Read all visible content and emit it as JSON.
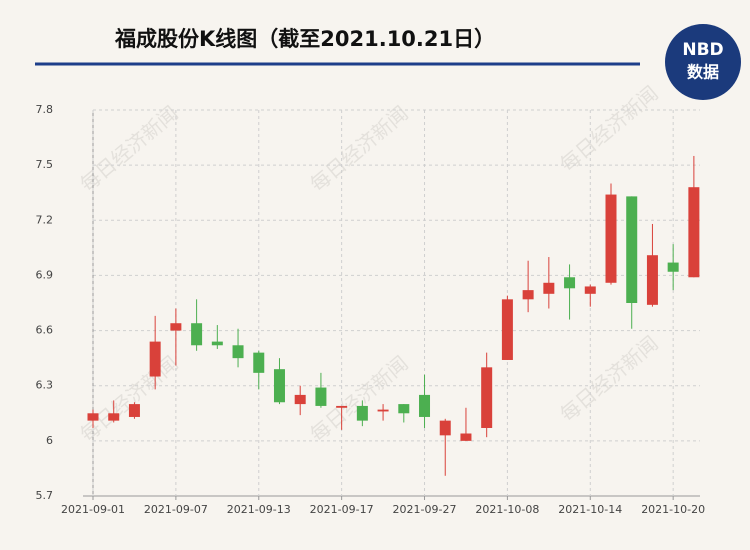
{
  "chart_data": {
    "type": "candlestick",
    "title": "福成股份K线图（截至2021.10.21日）",
    "logo": {
      "top": "NBD",
      "bottom": "数据"
    },
    "watermark": "每日经济新闻",
    "categories": [
      "2021-09-01",
      null,
      null,
      null,
      "2021-09-07",
      null,
      null,
      null,
      "2021-09-13",
      null,
      null,
      null,
      "2021-09-17",
      null,
      null,
      null,
      "2021-09-27",
      null,
      null,
      null,
      "2021-10-08",
      null,
      null,
      null,
      "2021-10-14",
      null,
      null,
      null,
      "2021-10-20",
      null
    ],
    "open": [
      6.11,
      6.11,
      6.13,
      6.35,
      6.6,
      6.64,
      6.54,
      6.52,
      6.48,
      6.39,
      6.2,
      6.29,
      6.18,
      6.19,
      6.16,
      6.2,
      6.25,
      6.03,
      6.0,
      6.07,
      6.44,
      6.77,
      6.8,
      6.89,
      6.8,
      6.86,
      7.33,
      6.74,
      6.97,
      6.89
    ],
    "close": [
      6.15,
      6.15,
      6.2,
      6.54,
      6.64,
      6.52,
      6.52,
      6.45,
      6.37,
      6.21,
      6.25,
      6.19,
      6.19,
      6.11,
      6.17,
      6.15,
      6.13,
      6.11,
      6.04,
      6.4,
      6.77,
      6.82,
      6.86,
      6.83,
      6.84,
      7.34,
      6.75,
      7.01,
      6.92,
      7.38
    ],
    "low": [
      6.07,
      6.1,
      6.12,
      6.28,
      6.41,
      6.49,
      6.5,
      6.4,
      6.28,
      6.2,
      6.14,
      6.18,
      6.06,
      6.08,
      6.11,
      6.1,
      6.07,
      5.81,
      6.0,
      6.02,
      6.44,
      6.7,
      6.72,
      6.66,
      6.73,
      6.85,
      6.61,
      6.73,
      6.82,
      6.89
    ],
    "high": [
      6.17,
      6.22,
      6.21,
      6.68,
      6.72,
      6.77,
      6.63,
      6.61,
      6.49,
      6.45,
      6.3,
      6.37,
      6.19,
      6.22,
      6.2,
      6.2,
      6.36,
      6.12,
      6.18,
      6.48,
      6.79,
      6.98,
      7.0,
      6.96,
      6.85,
      7.4,
      7.33,
      7.18,
      7.07,
      7.55
    ],
    "up_color": "#d9413a",
    "down_color": "#4caf50",
    "ylim": [
      5.7,
      7.8
    ],
    "yticks": [
      5.7,
      6,
      6.3,
      6.6,
      6.9,
      7.2,
      7.5,
      7.8
    ],
    "grid": true
  }
}
